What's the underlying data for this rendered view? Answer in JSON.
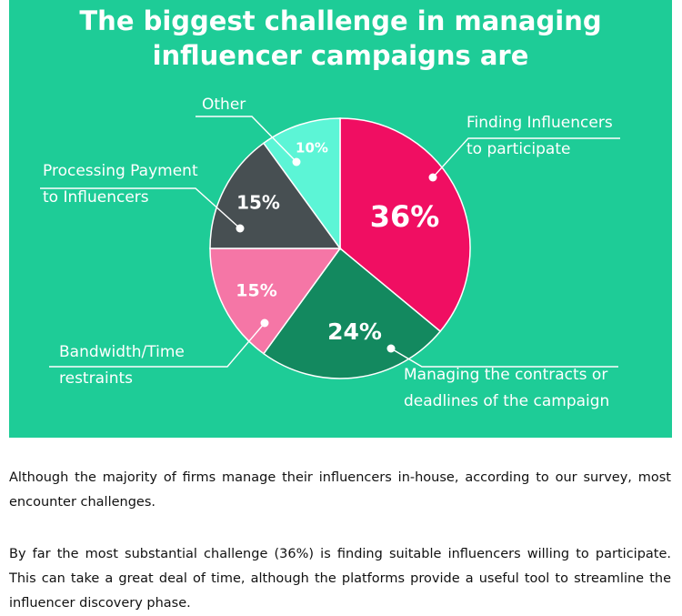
{
  "chart_data": {
    "type": "pie",
    "title_lines": [
      "The biggest challenge in managing",
      "influencer campaigns are"
    ],
    "unit": "%",
    "slices": [
      {
        "label_lines": [
          "Finding Influencers",
          "to participate"
        ],
        "value": 36,
        "color": "#f00e62",
        "value_label": "36%"
      },
      {
        "label_lines": [
          "Managing the contracts or",
          "deadlines of the campaign"
        ],
        "value": 24,
        "color": "#13895f",
        "value_label": "24%"
      },
      {
        "label_lines": [
          "Bandwidth/Time",
          "restraints"
        ],
        "value": 15,
        "color": "#f576a6",
        "value_label": "15%"
      },
      {
        "label_lines": [
          "Processing Payment",
          "to Influencers"
        ],
        "value": 15,
        "color": "#474f52",
        "value_label": "15%"
      },
      {
        "label_lines": [
          "Other"
        ],
        "value": 10,
        "color": "#5cf5d6",
        "value_label": "10%"
      }
    ],
    "background_color": "#1ecc97"
  },
  "article": {
    "paragraph1": "Although the majority of firms manage their influencers in-house, according to our survey, most encounter challenges.",
    "paragraph2": "By far the most substantial challenge (36%) is finding suitable influencers willing to participate. This can take a great deal of time, although the platforms provide a useful tool to streamline the influencer discovery phase."
  }
}
